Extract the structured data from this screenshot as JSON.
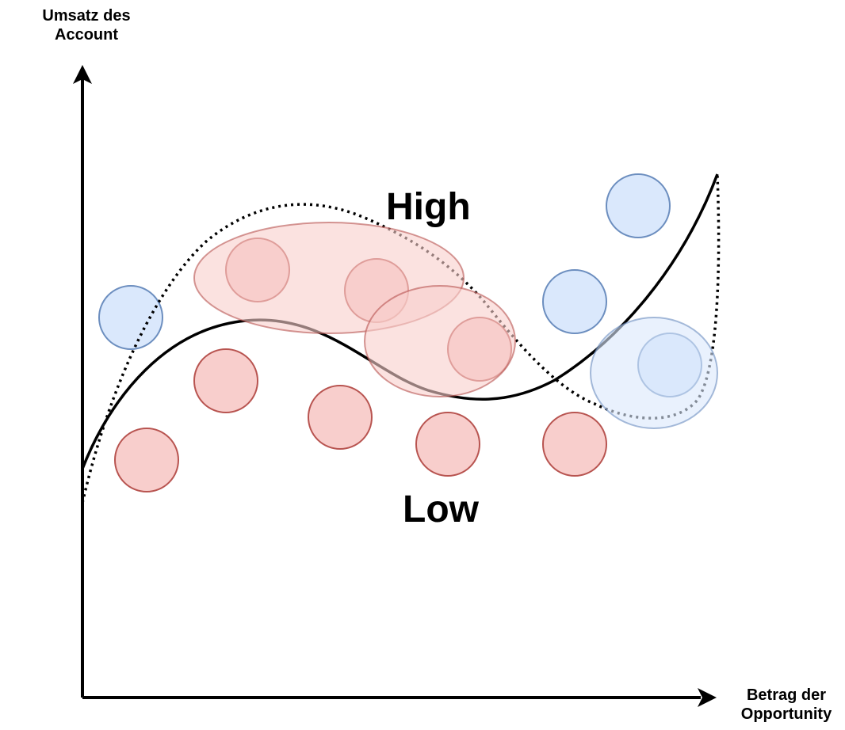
{
  "axes": {
    "y_label_line1": "Umsatz des",
    "y_label_line2": "Account",
    "x_label_line1": "Betrag der",
    "x_label_line2": "Opportunity"
  },
  "regions": {
    "high": "High",
    "low": "Low"
  },
  "colors": {
    "high_fill": "#dae8fc",
    "high_stroke": "#6c8ebf",
    "low_fill": "#f8cecc",
    "low_stroke": "#b85450",
    "curve": "#000000"
  }
}
